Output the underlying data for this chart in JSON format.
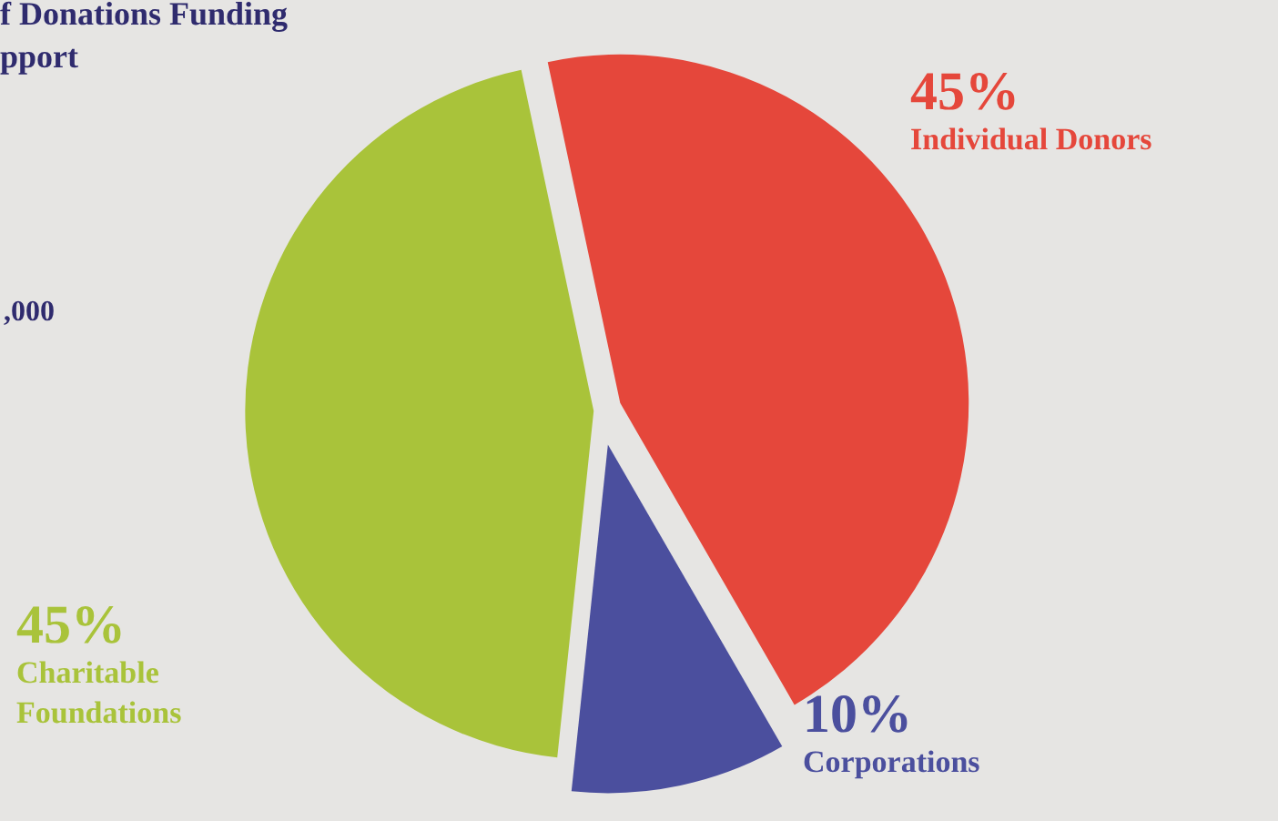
{
  "chart_data": {
    "type": "pie",
    "title": "f Donations Funding\npport",
    "annotations": [
      ",000"
    ],
    "categories": [
      "Individual Donors",
      "Corporations",
      "Charitable Foundations"
    ],
    "values": [
      45,
      10,
      45
    ],
    "value_labels": [
      "45%",
      "10%",
      "45%"
    ],
    "colors": [
      "#e5473b",
      "#4b4f9e",
      "#a9c33a"
    ],
    "legend": false
  }
}
